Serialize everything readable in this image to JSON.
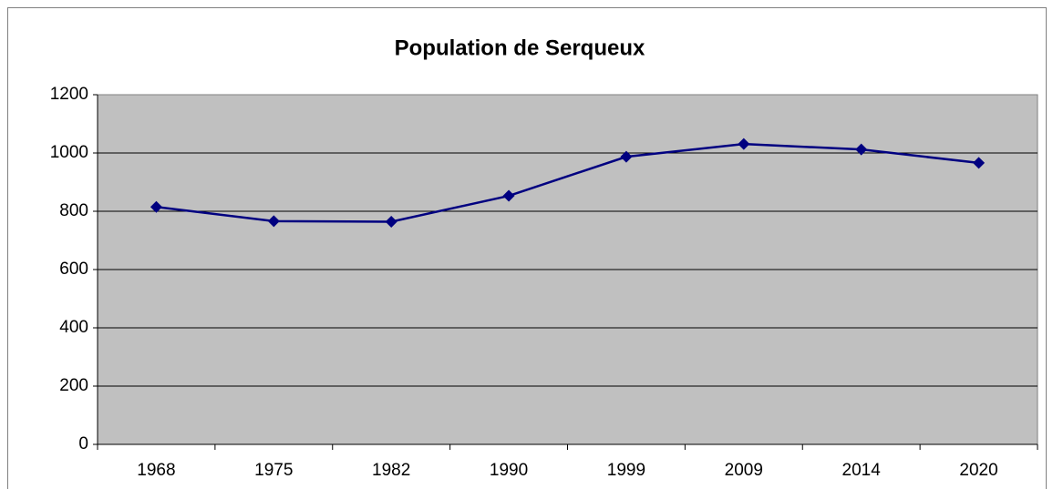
{
  "chart_data": {
    "type": "line",
    "title": "Population de Serqueux",
    "categories": [
      "1968",
      "1975",
      "1982",
      "1990",
      "1999",
      "2009",
      "2014",
      "2020"
    ],
    "series": [
      {
        "name": "Population",
        "color": "#000080",
        "values": [
          815,
          766,
          764,
          853,
          987,
          1031,
          1012,
          966
        ]
      }
    ],
    "ylim": [
      0,
      1200
    ],
    "yticks": [
      0,
      200,
      400,
      600,
      800,
      1000,
      1200
    ],
    "grid": true
  }
}
